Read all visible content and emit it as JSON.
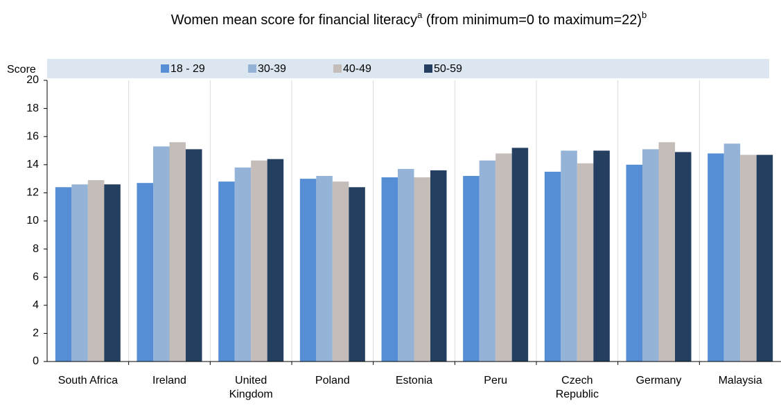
{
  "chart_data": {
    "type": "bar",
    "title": "Women mean score for financial literacy",
    "title_superscript": "a",
    "title_range": "(from minimum=0 to maximum=22)",
    "title_range_superscript": "b",
    "y_label": "Score",
    "categories": [
      "South Africa",
      "Ireland",
      [
        "United",
        "Kingdom"
      ],
      "Poland",
      "Estonia",
      "Peru",
      [
        "Czech",
        "Republic"
      ],
      "Germany",
      "Malaysia"
    ],
    "series": [
      {
        "name": "18 - 29",
        "color": "#558ed5",
        "values": [
          12.4,
          12.7,
          12.8,
          13.0,
          13.1,
          13.2,
          13.5,
          14.0,
          14.8
        ]
      },
      {
        "name": "30-39",
        "color": "#95b3d7",
        "values": [
          12.6,
          15.3,
          13.8,
          13.2,
          13.7,
          14.3,
          15.0,
          15.1,
          15.5
        ]
      },
      {
        "name": "40-49",
        "color": "#c4bdba",
        "values": [
          12.9,
          15.6,
          14.3,
          12.8,
          13.1,
          14.8,
          14.1,
          15.6,
          14.7
        ]
      },
      {
        "name": "50-59",
        "color": "#243f60",
        "values": [
          12.6,
          15.1,
          14.4,
          12.4,
          13.6,
          15.2,
          15.0,
          14.9,
          14.7
        ]
      }
    ],
    "ylim": [
      0,
      20
    ],
    "yticks": [
      0,
      2,
      4,
      6,
      8,
      10,
      12,
      14,
      16,
      18,
      20
    ],
    "grid": true,
    "legend": "top"
  }
}
